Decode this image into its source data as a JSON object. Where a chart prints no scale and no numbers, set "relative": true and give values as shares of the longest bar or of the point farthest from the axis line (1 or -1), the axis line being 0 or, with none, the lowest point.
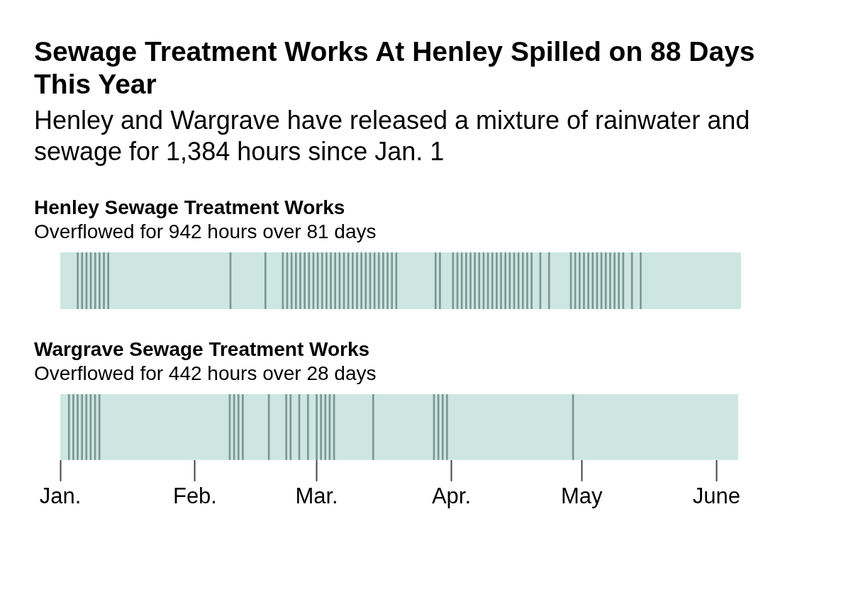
{
  "chart_data": [
    {
      "type": "other",
      "title": "Sewage Treatment Works At Henley Spilled on 88 Days This Year",
      "subtitle": "Henley and Wargrave have released a mixture of rainwater and sewage for 1,384 hours since Jan. 1"
    },
    {
      "type": "bar",
      "title": "Henley Sewage Treatment Works",
      "subtitle": "Overflowed for 942 hours over 81 days",
      "relative": true,
      "color": "#7a9792",
      "grid": false,
      "legend": false,
      "tick_labels": false,
      "x": [
        "--01-05",
        "--01-06",
        "--01-07",
        "--01-08",
        "--01-09",
        "--01-10",
        "--01-11",
        "--01-12",
        "--02-09",
        "--02-17",
        "--02-21",
        "--02-22",
        "--02-23",
        "--02-24",
        "--02-25",
        "--02-26",
        "--02-27",
        "--02-28",
        "--03-01",
        "--03-02",
        "--03-03",
        "--03-04",
        "--03-05",
        "--03-06",
        "--03-07",
        "--03-08",
        "--03-09",
        "--03-10",
        "--03-11",
        "--03-12",
        "--03-13",
        "--03-14",
        "--03-15",
        "--03-16",
        "--03-17",
        "--03-18",
        "--03-19",
        "--03-28",
        "--03-29",
        "--04-01",
        "--04-02",
        "--04-03",
        "--04-04",
        "--04-05",
        "--04-06",
        "--04-07",
        "--04-08",
        "--04-09",
        "--04-10",
        "--04-11",
        "--04-12",
        "--04-13",
        "--04-14",
        "--04-15",
        "--04-16",
        "--04-17",
        "--04-18",
        "--04-19",
        "--04-21",
        "--04-23",
        "--04-28",
        "--04-29",
        "--04-30",
        "--05-01",
        "--05-02",
        "--05-03",
        "--05-04",
        "--05-05",
        "--05-06",
        "--05-07",
        "--05-08",
        "--05-09",
        "--05-10",
        "--05-12",
        "--05-14"
      ],
      "values": [
        1,
        1,
        1,
        1,
        1,
        1,
        1,
        1,
        1,
        1,
        1,
        1,
        1,
        1,
        1,
        1,
        1,
        1,
        1,
        1,
        1,
        1,
        1,
        1,
        1,
        1,
        1,
        1,
        1,
        1,
        1,
        1,
        1,
        1,
        1,
        1,
        1,
        1,
        1,
        1,
        1,
        1,
        1,
        1,
        1,
        1,
        1,
        1,
        1,
        1,
        1,
        1,
        1,
        1,
        1,
        1,
        1,
        1,
        1,
        1,
        1,
        1,
        1,
        1,
        1,
        1,
        1,
        1,
        1,
        1,
        1,
        1,
        1,
        1,
        1
      ],
      "xlim": [
        "--01-01",
        "--06-06"
      ],
      "xticks": [
        {
          "value": "--01-01",
          "label": "Jan."
        },
        {
          "value": "--02-01",
          "label": "Feb."
        },
        {
          "value": "--03-01",
          "label": "Mar."
        },
        {
          "value": "--04-01",
          "label": "Apr."
        },
        {
          "value": "--05-01",
          "label": "May"
        },
        {
          "value": "--06-01",
          "label": "June"
        }
      ],
      "bands": [
        {
          "axis": "x",
          "from": "--01-01",
          "to": "--06-06",
          "color": "#cde6e2"
        }
      ]
    },
    {
      "type": "bar",
      "title": "Wargrave Sewage Treatment Works",
      "subtitle": "Overflowed for 442 hours over 28 days",
      "relative": true,
      "color": "#7a9792",
      "grid": false,
      "legend": false,
      "tick_labels": "x",
      "x": [
        "--01-03",
        "--01-04",
        "--01-05",
        "--01-06",
        "--01-07",
        "--01-08",
        "--01-09",
        "--01-10",
        "--02-09",
        "--02-10",
        "--02-11",
        "--02-12",
        "--02-18",
        "--02-22",
        "--02-23",
        "--02-25",
        "--02-27",
        "--03-01",
        "--03-02",
        "--03-03",
        "--03-04",
        "--03-05",
        "--03-14",
        "--03-28",
        "--03-29",
        "--03-30",
        "--03-31",
        "--04-29"
      ],
      "values": [
        1,
        1,
        1,
        1,
        1,
        1,
        1,
        1,
        1,
        1,
        1,
        1,
        1,
        1,
        1,
        1,
        1,
        1,
        1,
        1,
        1,
        1,
        1,
        1,
        1,
        1,
        1,
        1
      ],
      "xlim": [
        "--01-01",
        "--06-06"
      ],
      "xticks": [
        {
          "value": "--01-01",
          "label": "Jan."
        },
        {
          "value": "--02-01",
          "label": "Feb."
        },
        {
          "value": "--03-01",
          "label": "Mar."
        },
        {
          "value": "--04-01",
          "label": "Apr."
        },
        {
          "value": "--05-01",
          "label": "May"
        },
        {
          "value": "--06-01",
          "label": "June"
        }
      ],
      "bands": [
        {
          "axis": "x",
          "from": "--01-01",
          "to": "--06-06",
          "color": "#cde6e2"
        }
      ]
    }
  ]
}
